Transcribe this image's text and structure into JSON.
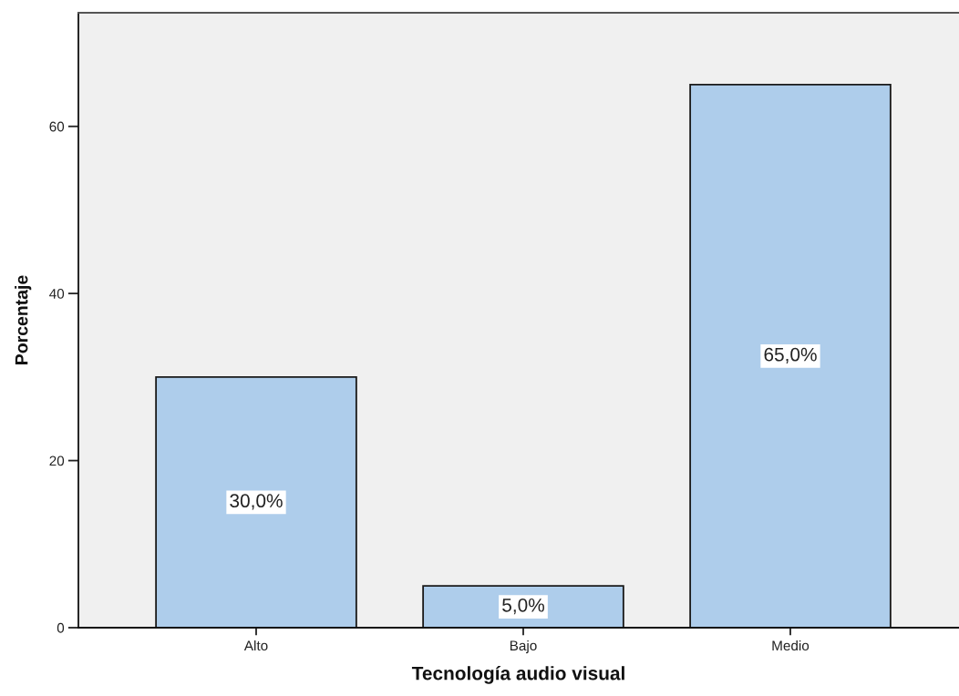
{
  "chart_data": {
    "type": "bar",
    "xlabel": "Tecnología audio visual",
    "ylabel": "Porcentaje",
    "categories": [
      "Alto",
      "Bajo",
      "Medio"
    ],
    "series": [
      {
        "color": "#aecdeb",
        "values": [
          30,
          5,
          65
        ]
      }
    ],
    "value_labels": [
      "30,0%",
      "5,0%",
      "65,0%"
    ],
    "ylim": [
      0,
      73.6
    ],
    "yticks": [
      0,
      20,
      40,
      60
    ]
  }
}
